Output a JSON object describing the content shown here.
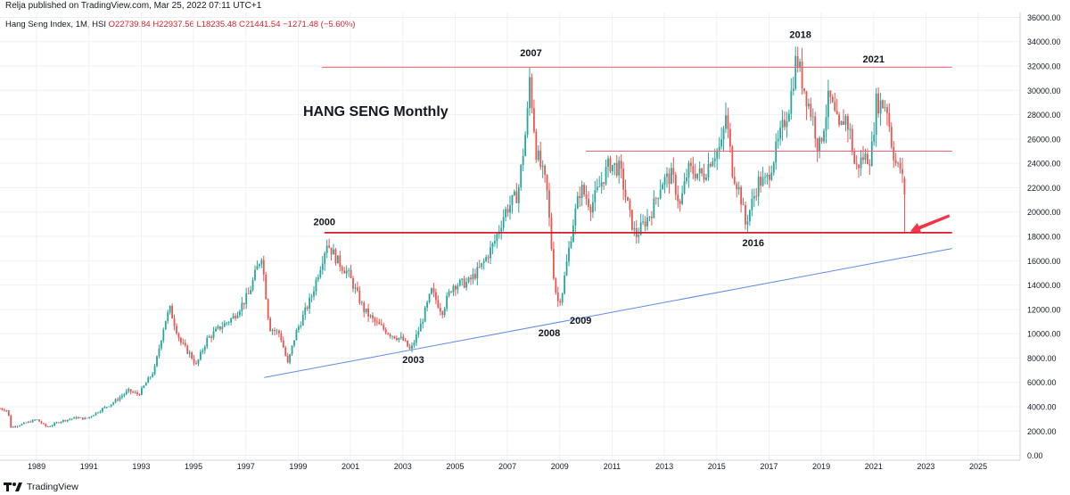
{
  "header": {
    "published_text": "Relja published on TradingView.com, Mar 25, 2022 07:11 UTC+1",
    "symbol_text": "Hang Seng Index, 1M, HSI",
    "open_text": "O22739.84",
    "high_text": "H22937.56",
    "low_text": "L18235.48",
    "close_text": "C21441.54",
    "change_text": "−1271.48 (−5.60%)"
  },
  "footer": {
    "brand_text": "TradingView",
    "logo_icon": "tradingview-logo-icon"
  },
  "colors": {
    "up": "#26a69a",
    "down": "#ef5350",
    "resistance": "#f06070",
    "support": "#d51b2b",
    "trendline": "#5c8ae6",
    "arrow": "#f23645"
  },
  "chart_data": {
    "type": "candlestick",
    "title": "HANG SENG Monthly",
    "interval": "1M",
    "x_tick_labels": [
      "1989",
      "1991",
      "1993",
      "1995",
      "1997",
      "1999",
      "2001",
      "2003",
      "2005",
      "2007",
      "2009",
      "2011",
      "2013",
      "2015",
      "2017",
      "2019",
      "2021",
      "2023",
      "2025"
    ],
    "y_tick_labels": [
      "0.00",
      "2000.00",
      "4000.00",
      "6000.00",
      "8000.00",
      "10000.00",
      "12000.00",
      "14000.00",
      "16000.00",
      "18000.00",
      "20000.00",
      "22000.00",
      "24000.00",
      "26000.00",
      "28000.00",
      "30000.00",
      "32000.00",
      "34000.00",
      "36000.00"
    ],
    "xlim": [
      1987.6,
      2026.6
    ],
    "ylim": [
      -400,
      36400
    ],
    "grid": true,
    "price_anchors": [
      [
        1987.6,
        3850
      ],
      [
        1987.9,
        3700
      ],
      [
        1988.0,
        2300
      ],
      [
        1988.5,
        2600
      ],
      [
        1989.0,
        2950
      ],
      [
        1989.4,
        2300
      ],
      [
        1989.9,
        2800
      ],
      [
        1990.5,
        3100
      ],
      [
        1990.9,
        3000
      ],
      [
        1991.5,
        3800
      ],
      [
        1991.9,
        4300
      ],
      [
        1992.5,
        5300
      ],
      [
        1992.9,
        5000
      ],
      [
        1993.5,
        7000
      ],
      [
        1993.9,
        11000
      ],
      [
        1994.1,
        12000
      ],
      [
        1994.5,
        9300
      ],
      [
        1994.9,
        8200
      ],
      [
        1995.1,
        7400
      ],
      [
        1995.5,
        9500
      ],
      [
        1996.0,
        10500
      ],
      [
        1996.5,
        11300
      ],
      [
        1997.1,
        13200
      ],
      [
        1997.6,
        16500
      ],
      [
        1997.9,
        10500
      ],
      [
        1998.3,
        10000
      ],
      [
        1998.6,
        7500
      ],
      [
        1998.9,
        10000
      ],
      [
        1999.5,
        13000
      ],
      [
        2000.1,
        17500
      ],
      [
        2000.5,
        16000
      ],
      [
        2000.9,
        15000
      ],
      [
        2001.5,
        12000
      ],
      [
        2001.9,
        11000
      ],
      [
        2002.5,
        10000
      ],
      [
        2003.0,
        9500
      ],
      [
        2003.3,
        8600
      ],
      [
        2003.7,
        10800
      ],
      [
        2004.1,
        13500
      ],
      [
        2004.5,
        11800
      ],
      [
        2004.9,
        14000
      ],
      [
        2005.5,
        14200
      ],
      [
        2006.0,
        15500
      ],
      [
        2006.5,
        17500
      ],
      [
        2006.9,
        20000
      ],
      [
        2007.4,
        21500
      ],
      [
        2007.75,
        27500
      ],
      [
        2007.85,
        31000
      ],
      [
        2008.1,
        25000
      ],
      [
        2008.5,
        22000
      ],
      [
        2008.8,
        14000
      ],
      [
        2008.95,
        12500
      ],
      [
        2009.1,
        13500
      ],
      [
        2009.5,
        19000
      ],
      [
        2009.8,
        22000
      ],
      [
        2010.2,
        20500
      ],
      [
        2010.5,
        22000
      ],
      [
        2010.9,
        24000
      ],
      [
        2011.3,
        23500
      ],
      [
        2011.7,
        19500
      ],
      [
        2011.9,
        18000
      ],
      [
        2012.5,
        20000
      ],
      [
        2012.9,
        22500
      ],
      [
        2013.3,
        23000
      ],
      [
        2013.6,
        20500
      ],
      [
        2013.9,
        23500
      ],
      [
        2014.5,
        23000
      ],
      [
        2014.8,
        24500
      ],
      [
        2015.2,
        25500
      ],
      [
        2015.35,
        28000
      ],
      [
        2015.6,
        23500
      ],
      [
        2015.9,
        21500
      ],
      [
        2016.1,
        19000
      ],
      [
        2016.6,
        22500
      ],
      [
        2016.9,
        22500
      ],
      [
        2017.4,
        26000
      ],
      [
        2017.8,
        29000
      ],
      [
        2018.05,
        32800
      ],
      [
        2018.3,
        30500
      ],
      [
        2018.7,
        27500
      ],
      [
        2018.9,
        25000
      ],
      [
        2019.3,
        29500
      ],
      [
        2019.7,
        26500
      ],
      [
        2019.9,
        28000
      ],
      [
        2020.1,
        26500
      ],
      [
        2020.3,
        23500
      ],
      [
        2020.6,
        24500
      ],
      [
        2020.9,
        24500
      ],
      [
        2021.1,
        29000
      ],
      [
        2021.5,
        28800
      ],
      [
        2021.7,
        25500
      ],
      [
        2021.9,
        23500
      ],
      [
        2022.0,
        23800
      ],
      [
        2022.1,
        22700
      ],
      [
        2022.2,
        21441
      ]
    ],
    "horizontal_levels": [
      {
        "price": 31900,
        "from": 1999.9,
        "to": 2024.0,
        "role": "resistance"
      },
      {
        "price": 25000,
        "from": 2010.0,
        "to": 2024.0,
        "role": "resistance"
      },
      {
        "price": 18300,
        "from": 2000.0,
        "to": 2024.0,
        "role": "support"
      }
    ],
    "trendline": {
      "points": [
        [
          1997.7,
          6400
        ],
        [
          2024.0,
          17000
        ]
      ]
    },
    "annotations": [
      {
        "text": "2000",
        "x": 2000.0,
        "y": 18900
      },
      {
        "text": "2003",
        "x": 2003.4,
        "y": 7600
      },
      {
        "text": "2007",
        "x": 2007.9,
        "y": 32800
      },
      {
        "text": "2008",
        "x": 2008.6,
        "y": 9800
      },
      {
        "text": "2009",
        "x": 2009.8,
        "y": 10800
      },
      {
        "text": "2016",
        "x": 2016.4,
        "y": 17200
      },
      {
        "text": "2018",
        "x": 2018.2,
        "y": 34300
      },
      {
        "text": "2021",
        "x": 2021.0,
        "y": 32300
      }
    ],
    "arrow": {
      "from": [
        2023.9,
        19700
      ],
      "to": [
        2022.4,
        18400
      ]
    }
  }
}
